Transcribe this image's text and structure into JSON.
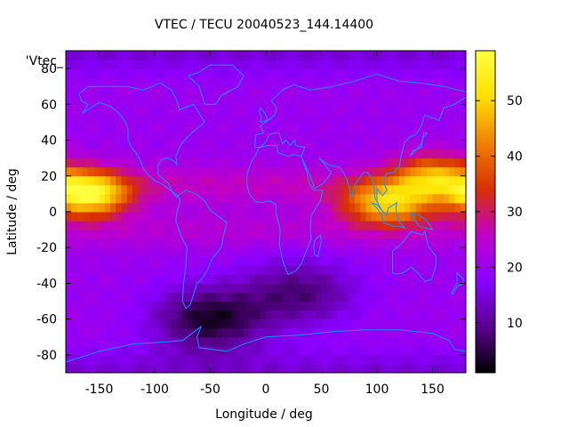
{
  "title": "VTEC / TECU 20040523_144.14400",
  "series_label": "'Vtec_",
  "x_axis": {
    "label": "Longitude / deg",
    "range": [
      -180,
      180
    ],
    "ticks": [
      -150,
      -100,
      -50,
      0,
      50,
      100,
      150
    ]
  },
  "y_axis": {
    "label": "Latitude / deg",
    "range": [
      -90,
      90
    ],
    "ticks": [
      -80,
      -60,
      -40,
      -20,
      0,
      20,
      40,
      60,
      80
    ]
  },
  "colorbar": {
    "range": [
      1,
      59
    ],
    "ticks": [
      10,
      20,
      30,
      40,
      50
    ],
    "palette": [
      "#000000",
      "#5a0090",
      "#8a00ff",
      "#c000c8",
      "#d83000",
      "#f08000",
      "#ffe000",
      "#ffff40"
    ]
  },
  "coastline_color": "#1e90ff",
  "chart_data": {
    "type": "heatmap",
    "title": "VTEC / TECU 20040523_144.14400",
    "xlabel": "Longitude / deg",
    "ylabel": "Latitude / deg",
    "xlim": [
      -180,
      180
    ],
    "ylim": [
      -90,
      90
    ],
    "zlim": [
      1,
      59
    ],
    "grid": false,
    "features": {
      "crest_north": {
        "lat": 15,
        "halfwidth": 11
      },
      "crest_south": {
        "lat": -10,
        "halfwidth": 10
      },
      "peaks": [
        {
          "lon": -160,
          "lat": 10,
          "value": 56,
          "radius_lon": 35,
          "radius_lat": 12
        },
        {
          "lon": 110,
          "lat": 5,
          "value": 48,
          "radius_lon": 40,
          "radius_lat": 12
        },
        {
          "lon": 150,
          "lat": 20,
          "value": 42,
          "radius_lon": 35,
          "radius_lat": 12
        }
      ],
      "background": 20,
      "lows": [
        {
          "lon": -50,
          "lat": -60,
          "value": 3
        },
        {
          "lon": 30,
          "lat": -45,
          "value": 8
        }
      ]
    }
  }
}
